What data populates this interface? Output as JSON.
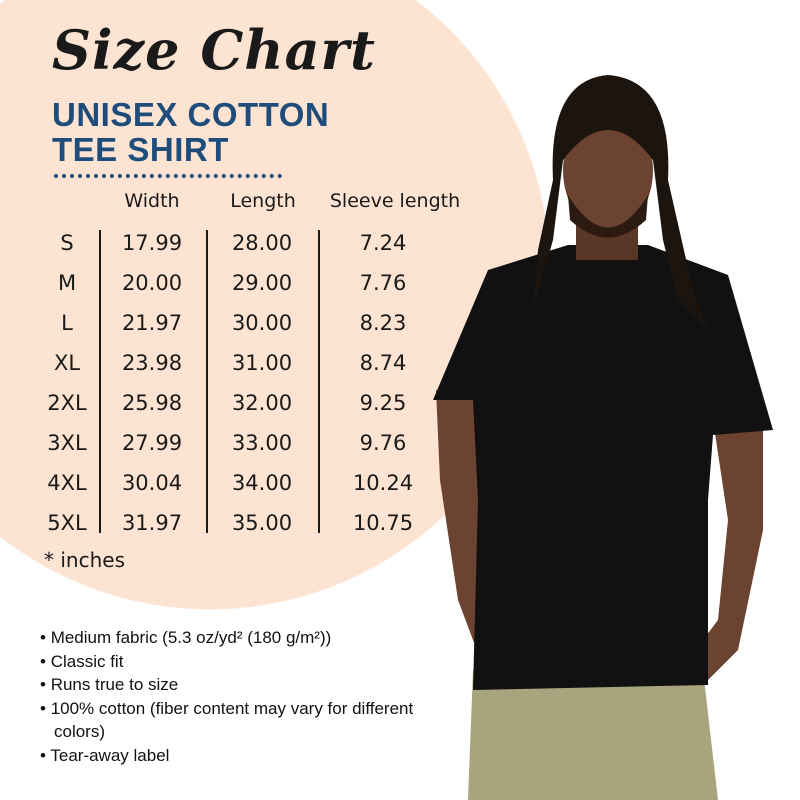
{
  "title": "Size Chart",
  "subtitle_line1": "UNISEX COTTON",
  "subtitle_line2": "TEE SHIRT",
  "colors": {
    "background_circle": "#fde3d2",
    "subtitle": "#1e4d7b",
    "shirt": "#111111"
  },
  "table": {
    "headers": [
      "Width",
      "Length",
      "Sleeve length"
    ],
    "rows": [
      {
        "size": "S",
        "width": "17.99",
        "length": "28.00",
        "sleeve": "7.24"
      },
      {
        "size": "M",
        "width": "20.00",
        "length": "29.00",
        "sleeve": "7.76"
      },
      {
        "size": "L",
        "width": "21.97",
        "length": "30.00",
        "sleeve": "8.23"
      },
      {
        "size": "XL",
        "width": "23.98",
        "length": "31.00",
        "sleeve": "8.74"
      },
      {
        "size": "2XL",
        "width": "25.98",
        "length": "32.00",
        "sleeve": "9.25"
      },
      {
        "size": "3XL",
        "width": "27.99",
        "length": "33.00",
        "sleeve": "9.76"
      },
      {
        "size": "4XL",
        "width": "30.04",
        "length": "34.00",
        "sleeve": "10.24"
      },
      {
        "size": "5XL",
        "width": "31.97",
        "length": "35.00",
        "sleeve": "10.75"
      }
    ],
    "unit_note": "* inches"
  },
  "features": [
    "Medium fabric (5.3 oz/yd² (180 g/m²))",
    "Classic fit",
    "Runs true to size",
    "100% cotton (fiber content may vary for different colors)",
    "Tear-away label"
  ]
}
